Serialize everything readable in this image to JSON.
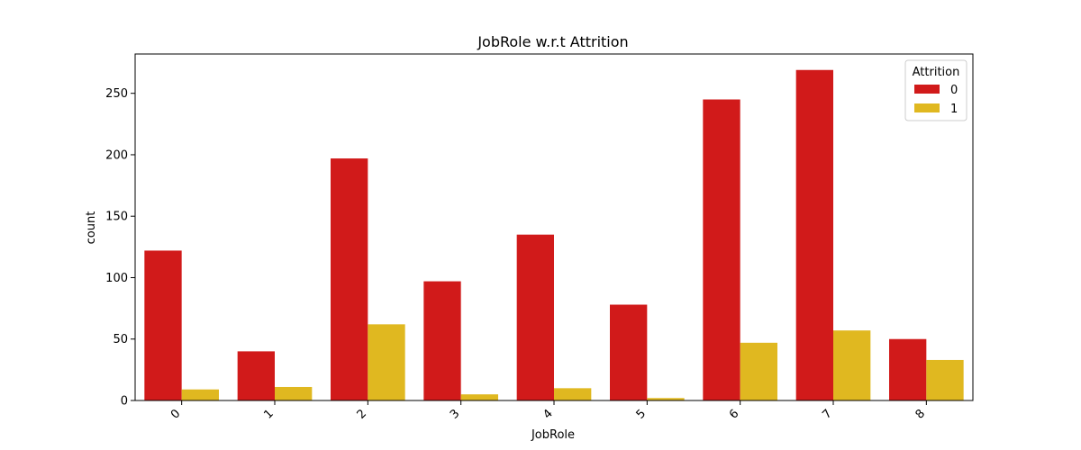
{
  "chart_data": {
    "type": "bar",
    "title": "JobRole w.r.t Attrition",
    "xlabel": "JobRole",
    "ylabel": "count",
    "categories": [
      "0",
      "1",
      "2",
      "3",
      "4",
      "5",
      "6",
      "7",
      "8"
    ],
    "series": [
      {
        "name": "0",
        "color": "#d11a1a",
        "values": [
          122,
          40,
          197,
          97,
          135,
          78,
          245,
          269,
          50
        ]
      },
      {
        "name": "1",
        "color": "#e0b820",
        "values": [
          9,
          11,
          62,
          5,
          10,
          2,
          47,
          57,
          33
        ]
      }
    ],
    "yticks": [
      0,
      50,
      100,
      150,
      200,
      250
    ],
    "ylim": [
      0,
      282
    ],
    "grid": false,
    "legend": {
      "title": "Attrition",
      "placement": "top-right"
    }
  }
}
